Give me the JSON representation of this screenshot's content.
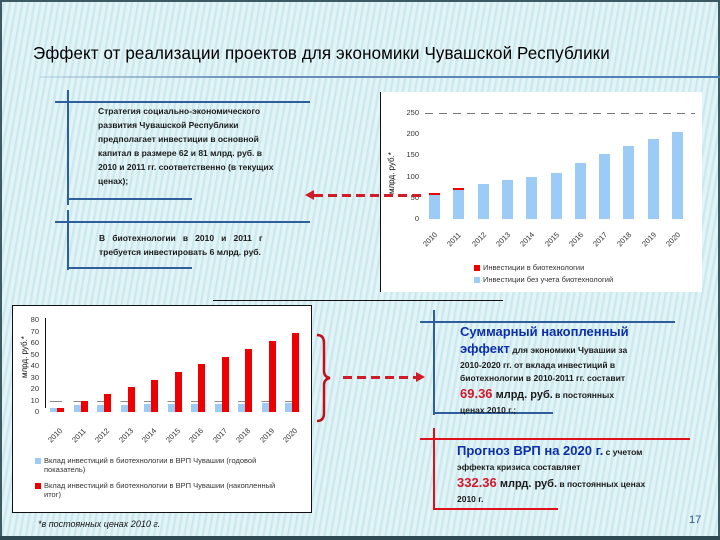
{
  "slide": {
    "title": "Эффект от реализации проектов для экономики Чувашской Республики",
    "page_number": "17",
    "footnote": "*в постоянных ценах 2010 г."
  },
  "callouts": {
    "strategy": {
      "text_lines": [
        "Стратегия социально-экономического",
        "развития Чувашской Республики",
        "предполагает инвестиции в основной",
        "капитал в размере 62 и 81 млрд. руб. в",
        "2010 и 2011 гг. соответственно (в текущих",
        "ценах);"
      ]
    },
    "biotech": {
      "text_lines": [
        "В   биотехнологии   в   2010   и   2011   г",
        "требуется инвестировать 6 млрд. руб."
      ]
    },
    "cumulative": {
      "headline_1": "Суммарный накопленный",
      "headline_2": "эффект",
      "text_1": " для экономики Чувашии за",
      "text_2": "2010-2020 гг. от вклада инвестиций в",
      "text_3": "биотехнологии в 2010-2011 гг. составит",
      "value": "69.36",
      "unit": " млрд. руб.",
      "text_4": " в постоянных",
      "text_5": "ценах 2010 г.;"
    },
    "forecast": {
      "headline": "Прогноз ВРП на 2020 г.",
      "text_1": " с учетом",
      "text_2": "эффекта кризиса составляет",
      "value": "332.36",
      "unit": " млрд. руб.",
      "text_3": " в постоянных ценах",
      "text_4": "2010 г."
    }
  },
  "colors": {
    "bar_blue": "#9ccbf5",
    "bar_red": "#ee0000",
    "accent_blue_text": "#0c2fa8",
    "accent_red_text": "#d3182c",
    "callout_blue_line": "#2f5f9a",
    "callout_red_line": "#e0101a"
  },
  "chart_data": [
    {
      "type": "bar",
      "stacked": true,
      "title": "",
      "xlabel": "",
      "ylabel": "млрд. руб.*",
      "ylim": [
        0,
        250
      ],
      "yticks": [
        "0",
        "50",
        "100",
        "150",
        "200",
        "250"
      ],
      "categories": [
        "2010",
        "2011",
        "2012",
        "2013",
        "2014",
        "2015",
        "2016",
        "2017",
        "2018",
        "2019",
        "2020"
      ],
      "series": [
        {
          "name": "Инвестиции без учета биотехнологий",
          "color": "#9ccbf5",
          "values": [
            57,
            71,
            83,
            92,
            99,
            108,
            132,
            153,
            172,
            189,
            205
          ]
        },
        {
          "name": "Инвестиции в биотехнологии",
          "color": "#ee0000",
          "values": [
            5,
            3,
            0,
            0,
            0,
            0,
            0,
            0,
            0,
            0,
            0
          ]
        }
      ],
      "legend": [
        "Инвестиции в биотехнологии",
        "Инвестиции без учета биотехнологий"
      ],
      "legend_position": "bottom"
    },
    {
      "type": "bar",
      "stacked": false,
      "title": "",
      "xlabel": "",
      "ylabel": "млрд. руб.*",
      "ylim": [
        0,
        80
      ],
      "yticks": [
        "0",
        "10",
        "20",
        "30",
        "40",
        "50",
        "60",
        "70",
        "80"
      ],
      "categories": [
        "2010",
        "2011",
        "2012",
        "2013",
        "2014",
        "2015",
        "2016",
        "2017",
        "2018",
        "2019",
        "2020"
      ],
      "series": [
        {
          "name": "Вклад инвестиций в биотехнологии в ВРП Чувашии (годовой показатель)",
          "color": "#9ccbf5",
          "values": [
            3.2,
            5.8,
            5.8,
            5.8,
            6.7,
            6.7,
            6.7,
            6.7,
            6.7,
            7.5,
            7.5
          ]
        },
        {
          "name": "Вклад инвестиций в биотехнологии в ВРП Чувашии (накопленный итог)",
          "color": "#ee0000",
          "values": [
            3.5,
            10,
            15.7,
            21.8,
            28,
            35,
            42,
            48,
            54.7,
            61.6,
            69.36
          ]
        }
      ],
      "legend": [
        "Вклад инвестиций в биотехнологии в ВРП Чувашии (годовой показатель)",
        "Вклад инвестиций в биотехнологии в ВРП Чувашии (накопленный итог)"
      ],
      "legend_position": "bottom"
    }
  ],
  "top_chart": {
    "ylabel": "млрд. руб.*",
    "legend_red": "Инвестиции в биотехнологии",
    "legend_blue": "Инвестиции без учета биотехнологий"
  },
  "bottom_chart": {
    "ylabel": "млрд. руб.*",
    "legend_blue_1": "Вклад инвестиций в биотехнологии в ВРП Чувашии (годовой",
    "legend_blue_2": "показатель)",
    "legend_red_1": "Вклад инвестиций в биотехнологии в ВРП Чувашии (накопленный",
    "legend_red_2": "итог)"
  }
}
